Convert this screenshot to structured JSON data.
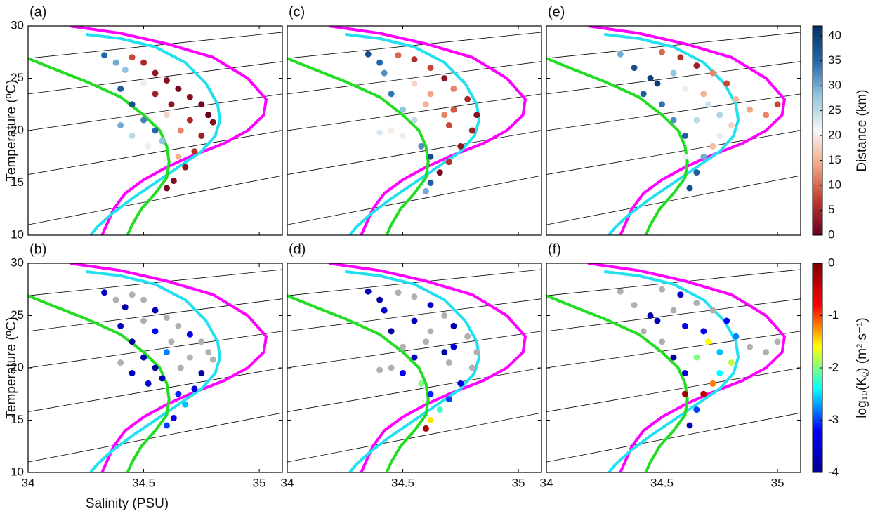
{
  "chart_data": [
    {
      "type": "scatter",
      "label": "(a)",
      "ylabel": "Temperature (ºC)",
      "xlim": [
        34,
        35.1
      ],
      "ylim": [
        10,
        30
      ],
      "xticks": [
        34,
        34.5,
        35
      ],
      "yticks": [
        10,
        15,
        20,
        25,
        30
      ],
      "colorbar": 0,
      "x": [
        34.33,
        34.38,
        34.42,
        34.45,
        34.5,
        34.55,
        34.6,
        34.65,
        34.7,
        34.75,
        34.78,
        34.8,
        34.55,
        34.62,
        34.7,
        34.75,
        34.72,
        34.68,
        34.63,
        34.6,
        34.4,
        34.45,
        34.5,
        34.4,
        34.45,
        34.52,
        34.58,
        34.55,
        34.65,
        34.66,
        34.6,
        34.5
      ],
      "values": [
        27.2,
        26.5,
        25.8,
        27.0,
        26.5,
        25.5,
        24.8,
        24.0,
        23.2,
        22.5,
        21.5,
        20.8,
        23.5,
        22.5,
        21.0,
        19.5,
        18.0,
        16.5,
        15.2,
        14.5,
        24.0,
        22.5,
        21.0,
        20.5,
        19.5,
        18.5,
        19.0,
        20.0,
        17.5,
        20.0,
        21.5,
        24.5
      ],
      "color_values": [
        35,
        30,
        28,
        8,
        5,
        3,
        2,
        1,
        2,
        1,
        0,
        2,
        4,
        3,
        5,
        4,
        6,
        3,
        2,
        1,
        36,
        38,
        33,
        30,
        25,
        22,
        28,
        35,
        15,
        12,
        18,
        20
      ]
    },
    {
      "type": "scatter",
      "label": "(b)",
      "ylabel": "Temperature (ºC)",
      "xlabel": "Salinity (PSU)",
      "xlim": [
        34,
        35.1
      ],
      "ylim": [
        10,
        30
      ],
      "xticks": [
        34,
        34.5,
        35
      ],
      "yticks": [
        10,
        15,
        20,
        25,
        30
      ],
      "colorbar": 1,
      "x": [
        34.33,
        34.38,
        34.42,
        34.45,
        34.5,
        34.55,
        34.6,
        34.65,
        34.7,
        34.75,
        34.78,
        34.8,
        34.55,
        34.62,
        34.7,
        34.75,
        34.72,
        34.68,
        34.63,
        34.6,
        34.4,
        34.45,
        34.5,
        34.4,
        34.45,
        34.52,
        34.58,
        34.55,
        34.65,
        34.66,
        34.6,
        34.5
      ],
      "values": [
        27.2,
        26.5,
        25.8,
        27.0,
        26.5,
        25.5,
        24.8,
        24.0,
        23.2,
        22.5,
        21.5,
        20.8,
        23.5,
        22.5,
        21.0,
        19.5,
        18.0,
        16.5,
        15.2,
        14.5,
        24.0,
        22.5,
        21.0,
        20.5,
        19.5,
        18.5,
        19.0,
        20.0,
        17.5,
        20.0,
        21.5,
        24.5
      ],
      "color_values": [
        -3.6,
        null,
        -3.8,
        null,
        null,
        -3.7,
        null,
        null,
        -3.4,
        null,
        null,
        null,
        -3.2,
        null,
        null,
        -3.9,
        -3.5,
        -2.6,
        -3.3,
        -3.0,
        -3.7,
        -3.9,
        -3.8,
        null,
        -3.6,
        -3.4,
        -3.8,
        -3.9,
        -3.1,
        null,
        -2.8,
        null
      ]
    },
    {
      "type": "scatter",
      "label": "(c)",
      "xlim": [
        34,
        35.1
      ],
      "ylim": [
        10,
        30
      ],
      "xticks": [
        34,
        34.5,
        35
      ],
      "yticks": [
        10,
        15,
        20,
        25,
        30
      ],
      "colorbar": 0,
      "x": [
        34.35,
        34.4,
        34.42,
        34.48,
        34.55,
        34.62,
        34.68,
        34.72,
        34.78,
        34.82,
        34.8,
        34.75,
        34.7,
        34.66,
        34.62,
        34.6,
        34.45,
        34.5,
        34.55,
        34.45,
        34.5,
        34.58,
        34.62,
        34.6,
        34.68,
        34.7,
        34.55,
        34.62,
        34.4,
        34.72
      ],
      "values": [
        27.3,
        26.5,
        25.5,
        27.2,
        26.8,
        26.0,
        25.0,
        24.0,
        23.0,
        21.5,
        20.0,
        18.5,
        17.0,
        16.0,
        15.0,
        14.2,
        23.5,
        22.0,
        21.0,
        20.0,
        19.5,
        18.5,
        17.5,
        22.5,
        21.5,
        20.5,
        24.5,
        23.5,
        19.8,
        22.0
      ],
      "color_values": [
        38,
        35,
        32,
        10,
        6,
        8,
        3,
        12,
        5,
        2,
        4,
        3,
        6,
        1,
        36,
        30,
        34,
        28,
        25,
        20,
        22,
        32,
        38,
        15,
        12,
        8,
        18,
        14,
        23,
        9
      ]
    },
    {
      "type": "scatter",
      "label": "(d)",
      "xlim": [
        34,
        35.1
      ],
      "ylim": [
        10,
        30
      ],
      "xticks": [
        34,
        34.5,
        35
      ],
      "yticks": [
        10,
        15,
        20,
        25,
        30
      ],
      "colorbar": 1,
      "x": [
        34.35,
        34.4,
        34.42,
        34.48,
        34.55,
        34.62,
        34.68,
        34.72,
        34.78,
        34.82,
        34.8,
        34.75,
        34.7,
        34.66,
        34.62,
        34.6,
        34.45,
        34.5,
        34.55,
        34.45,
        34.5,
        34.58,
        34.62,
        34.6,
        34.68,
        34.7,
        34.55,
        34.62,
        34.4,
        34.72
      ],
      "values": [
        27.3,
        26.5,
        25.5,
        27.2,
        26.8,
        26.0,
        25.0,
        24.0,
        23.0,
        21.5,
        20.0,
        18.5,
        17.0,
        16.0,
        15.0,
        14.2,
        23.5,
        22.0,
        21.0,
        20.0,
        19.5,
        18.5,
        17.5,
        22.5,
        21.5,
        20.5,
        24.5,
        23.5,
        19.8,
        22.0
      ],
      "color_values": [
        -3.7,
        -3.9,
        -3.5,
        null,
        null,
        -3.6,
        null,
        -3.8,
        null,
        null,
        null,
        -3.4,
        -3.0,
        -2.2,
        -1.5,
        -0.3,
        -3.9,
        null,
        -3.6,
        null,
        -3.3,
        -2.0,
        -3.1,
        null,
        -3.8,
        null,
        -3.7,
        null,
        null,
        -3.5
      ]
    },
    {
      "type": "scatter",
      "label": "(e)",
      "xlim": [
        34,
        35.1
      ],
      "ylim": [
        10,
        30
      ],
      "xticks": [
        34,
        34.5,
        35
      ],
      "yticks": [
        10,
        15,
        20,
        25,
        30
      ],
      "colorbar": 0,
      "x": [
        34.32,
        34.38,
        34.45,
        34.5,
        34.58,
        34.65,
        34.72,
        34.78,
        34.82,
        34.88,
        34.95,
        35.0,
        34.8,
        34.75,
        34.72,
        34.68,
        34.65,
        34.62,
        34.5,
        34.55,
        34.6,
        34.65,
        34.7,
        34.6,
        34.55,
        34.42,
        34.48,
        34.75,
        34.6,
        34.68
      ],
      "values": [
        27.3,
        26.0,
        25.0,
        27.5,
        27.0,
        26.2,
        25.5,
        24.5,
        23.0,
        22.0,
        21.5,
        22.5,
        20.5,
        19.5,
        18.5,
        17.5,
        16.0,
        14.5,
        22.5,
        21.0,
        19.5,
        21.0,
        22.5,
        24.0,
        25.5,
        23.5,
        24.5,
        21.5,
        17.5,
        23.5
      ],
      "color_values": [
        30,
        38,
        40,
        10,
        6,
        4,
        12,
        8,
        16,
        14,
        12,
        8,
        18,
        22,
        16,
        30,
        36,
        38,
        34,
        32,
        36,
        25,
        24,
        20,
        28,
        36,
        40,
        26,
        22,
        15
      ]
    },
    {
      "type": "scatter",
      "label": "(f)",
      "xlim": [
        34,
        35.1
      ],
      "ylim": [
        10,
        30
      ],
      "xticks": [
        34,
        34.5,
        35
      ],
      "yticks": [
        10,
        15,
        20,
        25,
        30
      ],
      "colorbar": 1,
      "x": [
        34.32,
        34.38,
        34.45,
        34.5,
        34.58,
        34.65,
        34.72,
        34.78,
        34.82,
        34.88,
        34.95,
        35.0,
        34.8,
        34.75,
        34.72,
        34.68,
        34.65,
        34.62,
        34.5,
        34.55,
        34.6,
        34.65,
        34.7,
        34.6,
        34.55,
        34.42,
        34.48,
        34.75,
        34.6,
        34.68
      ],
      "values": [
        27.3,
        26.0,
        25.0,
        27.5,
        27.0,
        26.2,
        25.5,
        24.5,
        23.0,
        22.0,
        21.5,
        22.5,
        20.5,
        19.5,
        18.5,
        17.5,
        16.0,
        14.5,
        22.5,
        21.0,
        19.5,
        21.0,
        22.5,
        24.0,
        25.5,
        23.5,
        24.5,
        21.5,
        17.5,
        23.5
      ],
      "color_values": [
        null,
        null,
        -3.8,
        null,
        -3.6,
        null,
        null,
        -3.2,
        -2.8,
        null,
        null,
        null,
        -1.8,
        -2.4,
        -1.2,
        -0.4,
        -3.0,
        -3.7,
        null,
        -3.9,
        -3.5,
        -2.0,
        -1.6,
        -3.4,
        null,
        null,
        -3.7,
        -2.6,
        -0.2,
        -3.3
      ]
    }
  ],
  "colorbars": [
    {
      "label": "Distance (km)",
      "lim": [
        0,
        42
      ],
      "ticks": [
        0,
        5,
        10,
        15,
        20,
        25,
        30,
        35,
        40
      ],
      "colors": [
        "#67001f",
        "#c0392b",
        "#f4a582",
        "#f7f7f7",
        "#92c5de",
        "#2166ac",
        "#053061"
      ],
      "null_color": "#b0b0b0"
    },
    {
      "label": "log₁₀(Kᵨ) (m² s⁻¹)",
      "lim": [
        -4,
        0
      ],
      "ticks": [
        -4,
        -3,
        -2,
        -1,
        0
      ],
      "colors": [
        "#00008f",
        "#0000ff",
        "#00ffff",
        "#ffff00",
        "#ff0000",
        "#800000"
      ],
      "null_color": "#b0b0b0"
    }
  ],
  "reference_curves": [
    {
      "color": "#ff00ff",
      "x": [
        34.18,
        34.4,
        34.6,
        34.8,
        34.95,
        35.03,
        35.02,
        34.95,
        34.85,
        34.7,
        34.6,
        34.5,
        34.42,
        34.37,
        34.34,
        34.32
      ],
      "y": [
        30,
        29.3,
        28.3,
        27,
        25,
        23,
        21.5,
        20,
        18.8,
        17.5,
        16.5,
        15.3,
        14,
        12.5,
        11,
        10
      ]
    },
    {
      "color": "#22e0f0",
      "x": [
        34.25,
        34.4,
        34.55,
        34.68,
        34.77,
        34.82,
        34.83,
        34.81,
        34.75,
        34.65,
        34.55,
        34.45,
        34.36,
        34.3,
        34.27
      ],
      "y": [
        29.2,
        28.8,
        28,
        26.5,
        24.5,
        22.5,
        21,
        19.5,
        18,
        16.5,
        15,
        13.5,
        12,
        10.8,
        10
      ]
    },
    {
      "color": "#22dd22",
      "x": [
        34,
        34.1,
        34.25,
        34.4,
        34.5,
        34.57,
        34.6,
        34.61,
        34.6,
        34.55,
        34.49,
        34.45,
        34.43
      ],
      "y": [
        26.9,
        26,
        24.7,
        23.2,
        21.5,
        20,
        18.5,
        17,
        15.5,
        14,
        12.5,
        11,
        10
      ]
    }
  ],
  "isopycnals": [
    {
      "x": [
        34,
        35.1
      ],
      "y": [
        26.9,
        29.4
      ]
    },
    {
      "x": [
        34,
        35.1
      ],
      "y": [
        23.5,
        26.6
      ]
    },
    {
      "x": [
        34,
        35.1
      ],
      "y": [
        20.0,
        23.5
      ]
    },
    {
      "x": [
        34,
        35.1
      ],
      "y": [
        15.8,
        20.0
      ]
    },
    {
      "x": [
        34,
        35.1
      ],
      "y": [
        11.0,
        15.7
      ]
    }
  ]
}
